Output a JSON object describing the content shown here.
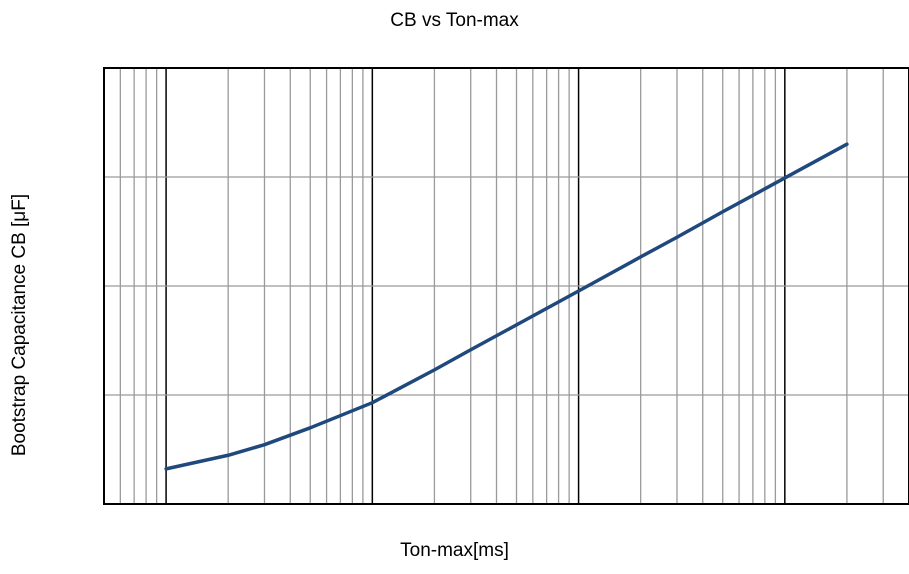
{
  "chart_data": {
    "type": "line",
    "title": "CB vs Ton-max",
    "xlabel": "Ton-max[ms]",
    "ylabel": "Bootstrap Capacitance CB [μF]",
    "x_scale": "log",
    "y_scale": "log",
    "xlim": [
      0.05,
      400
    ],
    "ylim": [
      0.01,
      100
    ],
    "grid": true,
    "series": [
      {
        "color": "#1f497d",
        "x": [
          0.1,
          0.2,
          0.3,
          0.5,
          1,
          2,
          3,
          5,
          10,
          20,
          30,
          50,
          100,
          200
        ],
        "y": [
          0.021,
          0.028,
          0.035,
          0.05,
          0.085,
          0.17,
          0.26,
          0.44,
          0.9,
          1.85,
          2.8,
          4.8,
          9.8,
          20
        ]
      }
    ]
  }
}
